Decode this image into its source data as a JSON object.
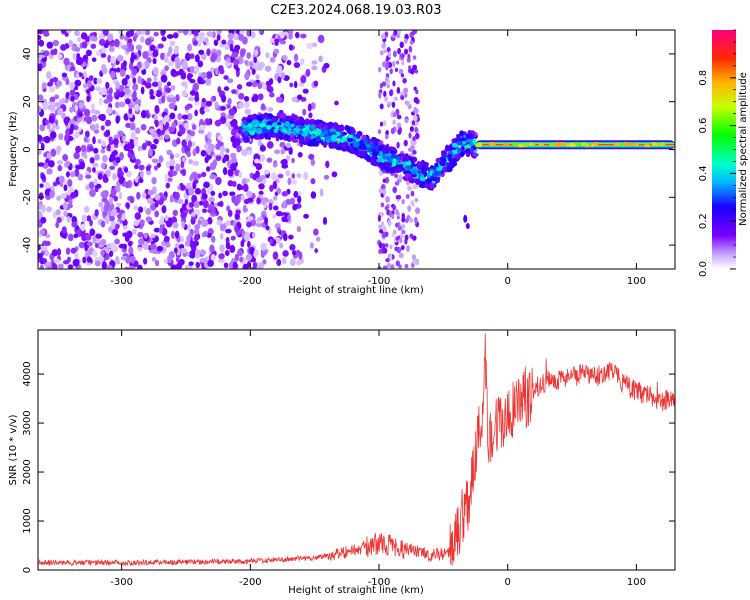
{
  "title": "C2E3.2024.068.19.03.R03",
  "chart_data": [
    {
      "type": "heatmap",
      "xlabel": "Height of straight line (km)",
      "ylabel": "Frequency (Hz)",
      "xlim": [
        -365,
        130
      ],
      "ylim": [
        -50,
        50
      ],
      "xticks": [
        -300,
        -200,
        -100,
        0,
        100
      ],
      "yticks": [
        -40,
        -20,
        0,
        20,
        40
      ],
      "colorbar": {
        "label": "Normalized spectral amplitude",
        "range": [
          0,
          1
        ],
        "ticks": [
          "0.0",
          "0.2",
          "0.4",
          "0.6",
          "0.8"
        ]
      },
      "features": {
        "noise_region_x": [
          -365,
          -140
        ],
        "secondary_noise_band_x": [
          -100,
          -70
        ],
        "drifting_signal": {
          "x": [
            -205,
            -180,
            -150,
            -120,
            -100,
            -80,
            -60,
            -45,
            -35,
            -25
          ],
          "y": [
            9,
            10,
            7,
            4,
            -2,
            -7,
            -12,
            -3,
            3,
            2
          ]
        },
        "steady_line": {
          "x": [
            -25,
            125
          ],
          "y": 2
        }
      }
    },
    {
      "type": "line",
      "xlabel": "Height of straight line (km)",
      "ylabel": "SNR (10 * v/v)",
      "xlim": [
        -365,
        130
      ],
      "ylim": [
        0,
        4900
      ],
      "xticks": [
        -300,
        -200,
        -100,
        0,
        100
      ],
      "yticks": [
        0,
        1000,
        2000,
        3000,
        4000
      ],
      "series": [
        {
          "name": "SNR",
          "color": "#ee3333",
          "x": [
            -365,
            -300,
            -200,
            -150,
            -120,
            -100,
            -80,
            -60,
            -45,
            -38,
            -30,
            -25,
            -20,
            -18,
            -15,
            -10,
            0,
            10,
            20,
            30,
            40,
            50,
            60,
            70,
            80,
            90,
            100,
            110,
            120,
            130
          ],
          "y": [
            150,
            150,
            180,
            250,
            400,
            550,
            450,
            300,
            350,
            900,
            1500,
            2400,
            3100,
            4600,
            2800,
            2900,
            3100,
            3400,
            3700,
            3850,
            3900,
            3950,
            4000,
            3950,
            4100,
            3800,
            3650,
            3550,
            3450,
            3500
          ]
        }
      ]
    }
  ]
}
